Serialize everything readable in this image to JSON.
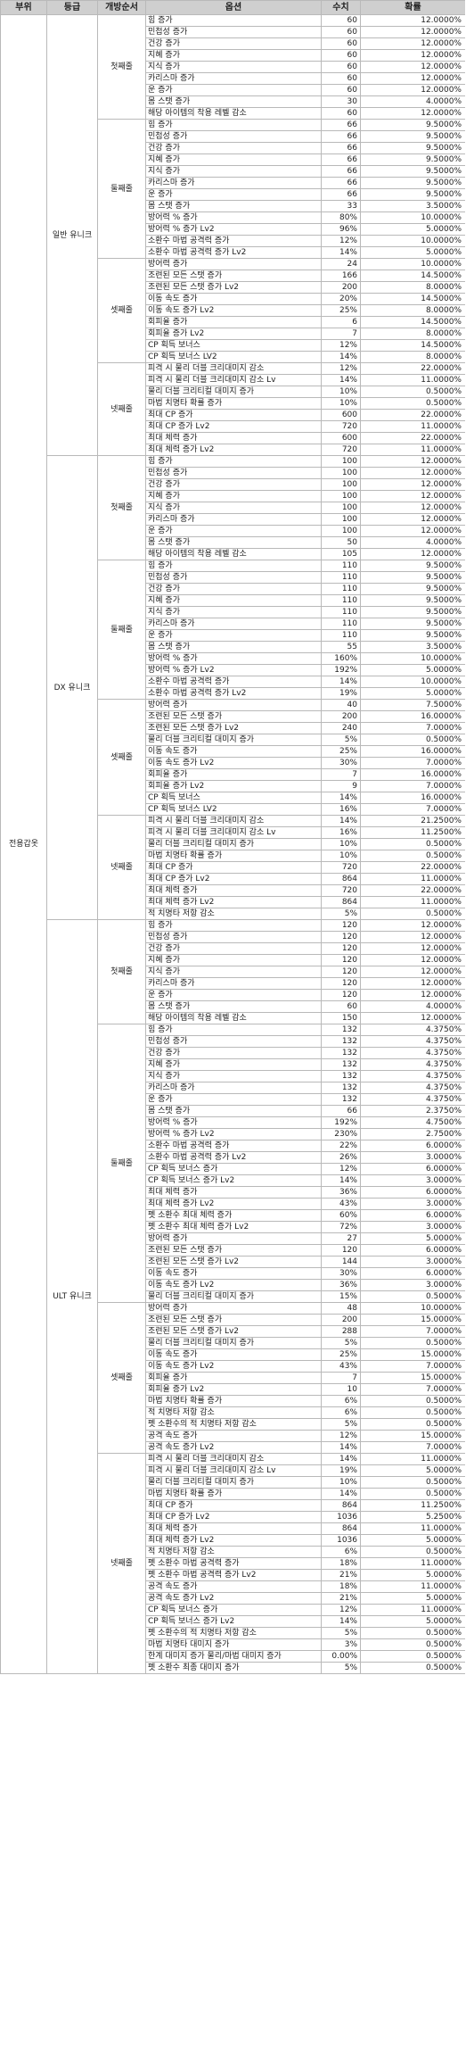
{
  "headers": {
    "part": "부위",
    "grade": "등급",
    "order": "개방순서",
    "option": "옵션",
    "value": "수치",
    "rate": "확률"
  },
  "part": "전용갑옷",
  "grades": [
    {
      "name": "일반 유니크",
      "orders": [
        {
          "name": "첫째줄",
          "rows": [
            [
              "힘 증가",
              "60",
              "12.0000%"
            ],
            [
              "민첩성 증가",
              "60",
              "12.0000%"
            ],
            [
              "건강 증가",
              "60",
              "12.0000%"
            ],
            [
              "지혜 증가",
              "60",
              "12.0000%"
            ],
            [
              "지식 증가",
              "60",
              "12.0000%"
            ],
            [
              "카리스마 증가",
              "60",
              "12.0000%"
            ],
            [
              "운 증가",
              "60",
              "12.0000%"
            ],
            [
              "몸 스탯 증가",
              "30",
              "4.0000%"
            ],
            [
              "해당 아이템의 착용 레벨 감소",
              "60",
              "12.0000%"
            ]
          ]
        },
        {
          "name": "둘째줄",
          "rows": [
            [
              "힘 증가",
              "66",
              "9.5000%"
            ],
            [
              "민첩성 증가",
              "66",
              "9.5000%"
            ],
            [
              "건강 증가",
              "66",
              "9.5000%"
            ],
            [
              "지혜 증가",
              "66",
              "9.5000%"
            ],
            [
              "지식 증가",
              "66",
              "9.5000%"
            ],
            [
              "카리스마 증가",
              "66",
              "9.5000%"
            ],
            [
              "운 증가",
              "66",
              "9.5000%"
            ],
            [
              "몸 스탯 증가",
              "33",
              "3.5000%"
            ],
            [
              "방어력 % 증가",
              "80%",
              "10.0000%"
            ],
            [
              "방어력 % 증가 Lv2",
              "96%",
              "5.0000%"
            ],
            [
              "소환수 마법 공격력 증가",
              "12%",
              "10.0000%"
            ],
            [
              "소환수 마법 공격력 증가 Lv2",
              "14%",
              "5.0000%"
            ]
          ]
        },
        {
          "name": "셋째줄",
          "rows": [
            [
              "방어력 증가",
              "24",
              "10.0000%"
            ],
            [
              "조련된 모든 스탯 증가",
              "166",
              "14.5000%"
            ],
            [
              "조련된 모든 스탯 증가 Lv2",
              "200",
              "8.0000%"
            ],
            [
              "이동 속도 증가",
              "20%",
              "14.5000%"
            ],
            [
              "이동 속도 증가 Lv2",
              "25%",
              "8.0000%"
            ],
            [
              "회피율 증가",
              "6",
              "14.5000%"
            ],
            [
              "회피율 증가 Lv2",
              "7",
              "8.0000%"
            ],
            [
              "CP 획득 보너스",
              "12%",
              "14.5000%"
            ],
            [
              "CP 획득 보너스 LV2",
              "14%",
              "8.0000%"
            ]
          ]
        },
        {
          "name": "넷째줄",
          "rows": [
            [
              "피격 시 물리 더블 크리대미지 감소",
              "12%",
              "22.0000%"
            ],
            [
              "피격 시 물리 더블 크리대미지 감소 Lv",
              "14%",
              "11.0000%"
            ],
            [
              "물리 더블 크리티컬 대미지 증가",
              "10%",
              "0.5000%"
            ],
            [
              "마법 치명타 확률 증가",
              "10%",
              "0.5000%"
            ],
            [
              "최대 CP 증가",
              "600",
              "22.0000%"
            ],
            [
              "최대 CP 증가 Lv2",
              "720",
              "11.0000%"
            ],
            [
              "최대 체력 증가",
              "600",
              "22.0000%"
            ],
            [
              "최대 체력 증가 Lv2",
              "720",
              "11.0000%"
            ]
          ]
        }
      ]
    },
    {
      "name": "DX 유니크",
      "orders": [
        {
          "name": "첫째줄",
          "rows": [
            [
              "힘 증가",
              "100",
              "12.0000%"
            ],
            [
              "민첩성 증가",
              "100",
              "12.0000%"
            ],
            [
              "건강 증가",
              "100",
              "12.0000%"
            ],
            [
              "지혜 증가",
              "100",
              "12.0000%"
            ],
            [
              "지식 증가",
              "100",
              "12.0000%"
            ],
            [
              "카리스마 증가",
              "100",
              "12.0000%"
            ],
            [
              "운 증가",
              "100",
              "12.0000%"
            ],
            [
              "몸 스탯 증가",
              "50",
              "4.0000%"
            ],
            [
              "해당 아이템의 착용 레벨 감소",
              "105",
              "12.0000%"
            ]
          ]
        },
        {
          "name": "둘째줄",
          "rows": [
            [
              "힘 증가",
              "110",
              "9.5000%"
            ],
            [
              "민첩성 증가",
              "110",
              "9.5000%"
            ],
            [
              "건강 증가",
              "110",
              "9.5000%"
            ],
            [
              "지혜 증가",
              "110",
              "9.5000%"
            ],
            [
              "지식 증가",
              "110",
              "9.5000%"
            ],
            [
              "카리스마 증가",
              "110",
              "9.5000%"
            ],
            [
              "운 증가",
              "110",
              "9.5000%"
            ],
            [
              "몸 스탯 증가",
              "55",
              "3.5000%"
            ],
            [
              "방어력 % 증가",
              "160%",
              "10.0000%"
            ],
            [
              "방어력 % 증가 Lv2",
              "192%",
              "5.0000%"
            ],
            [
              "소환수 마법 공격력 증가",
              "14%",
              "10.0000%"
            ],
            [
              "소환수 마법 공격력 증가 Lv2",
              "19%",
              "5.0000%"
            ]
          ]
        },
        {
          "name": "셋째줄",
          "rows": [
            [
              "방어력 증가",
              "40",
              "7.5000%"
            ],
            [
              "조련된 모든 스탯 증가",
              "200",
              "16.0000%"
            ],
            [
              "조련된 모든 스탯 증가 Lv2",
              "240",
              "7.0000%"
            ],
            [
              "물리 더블 크리티컬 대미지 증가",
              "5%",
              "0.5000%"
            ],
            [
              "이동 속도 증가",
              "25%",
              "16.0000%"
            ],
            [
              "이동 속도 증가 Lv2",
              "30%",
              "7.0000%"
            ],
            [
              "회피율 증가",
              "7",
              "16.0000%"
            ],
            [
              "회피율 증가 Lv2",
              "9",
              "7.0000%"
            ],
            [
              "CP 획득 보너스",
              "14%",
              "16.0000%"
            ],
            [
              "CP 획득 보너스 LV2",
              "16%",
              "7.0000%"
            ]
          ]
        },
        {
          "name": "넷째줄",
          "rows": [
            [
              "피격 시 물리 더블 크리대미지 감소",
              "14%",
              "21.2500%"
            ],
            [
              "피격 시 물리 더블 크리대미지 감소 Lv",
              "16%",
              "11.2500%"
            ],
            [
              "물리 더블 크리티컬 대미지 증가",
              "10%",
              "0.5000%"
            ],
            [
              "마법 치명타 확률 증가",
              "10%",
              "0.5000%"
            ],
            [
              "최대 CP 증가",
              "720",
              "22.0000%"
            ],
            [
              "최대 CP 증가 Lv2",
              "864",
              "11.0000%"
            ],
            [
              "최대 체력 증가",
              "720",
              "22.0000%"
            ],
            [
              "최대 체력 증가 Lv2",
              "864",
              "11.0000%"
            ],
            [
              "적 치명타 저항 감소",
              "5%",
              "0.5000%"
            ]
          ]
        }
      ]
    },
    {
      "name": "ULT 유니크",
      "orders": [
        {
          "name": "첫째줄",
          "rows": [
            [
              "힘 증가",
              "120",
              "12.0000%"
            ],
            [
              "민첩성 증가",
              "120",
              "12.0000%"
            ],
            [
              "건강 증가",
              "120",
              "12.0000%"
            ],
            [
              "지혜 증가",
              "120",
              "12.0000%"
            ],
            [
              "지식 증가",
              "120",
              "12.0000%"
            ],
            [
              "카리스마 증가",
              "120",
              "12.0000%"
            ],
            [
              "운 증가",
              "120",
              "12.0000%"
            ],
            [
              "몸 스탯 증가",
              "60",
              "4.0000%"
            ],
            [
              "해당 아이템의 착용 레벨 감소",
              "150",
              "12.0000%"
            ]
          ]
        },
        {
          "name": "둘째줄",
          "rows": [
            [
              "힘 증가",
              "132",
              "4.3750%"
            ],
            [
              "민첩성 증가",
              "132",
              "4.3750%"
            ],
            [
              "건강 증가",
              "132",
              "4.3750%"
            ],
            [
              "지혜 증가",
              "132",
              "4.3750%"
            ],
            [
              "지식 증가",
              "132",
              "4.3750%"
            ],
            [
              "카리스마 증가",
              "132",
              "4.3750%"
            ],
            [
              "운 증가",
              "132",
              "4.3750%"
            ],
            [
              "몸 스탯 증가",
              "66",
              "2.3750%"
            ],
            [
              "방어력 % 증가",
              "192%",
              "4.7500%"
            ],
            [
              "방어력 % 증가 Lv2",
              "230%",
              "2.7500%"
            ],
            [
              "소환수 마법 공격력 증가",
              "22%",
              "6.0000%"
            ],
            [
              "소환수 마법 공격력 증가 Lv2",
              "26%",
              "3.0000%"
            ],
            [
              "CP 획득 보너스 증가",
              "12%",
              "6.0000%"
            ],
            [
              "CP 획득 보너스 증가 Lv2",
              "14%",
              "3.0000%"
            ],
            [
              "최대 체력 증가",
              "36%",
              "6.0000%"
            ],
            [
              "최대 체력 증가 Lv2",
              "43%",
              "3.0000%"
            ],
            [
              "펫 소환수 최대 체력 증가",
              "60%",
              "6.0000%"
            ],
            [
              "펫 소환수 최대 체력 증가 Lv2",
              "72%",
              "3.0000%"
            ],
            [
              "방어력 증가",
              "27",
              "5.0000%"
            ],
            [
              "조련된 모든 스탯 증가",
              "120",
              "6.0000%"
            ],
            [
              "조련된 모든 스탯 증가 Lv2",
              "144",
              "3.0000%"
            ],
            [
              "이동 속도 증가",
              "30%",
              "6.0000%"
            ],
            [
              "이동 속도 증가 Lv2",
              "36%",
              "3.0000%"
            ],
            [
              "물리 더블 크리티컬 대미지 증가",
              "15%",
              "0.5000%"
            ]
          ]
        },
        {
          "name": "셋째줄",
          "rows": [
            [
              "방어력 증가",
              "48",
              "10.0000%"
            ],
            [
              "조련된 모든 스탯 증가",
              "200",
              "15.0000%"
            ],
            [
              "조련된 모든 스탯 증가 Lv2",
              "288",
              "7.0000%"
            ],
            [
              "물리 더블 크리티컬 대미지 증가",
              "5%",
              "0.5000%"
            ],
            [
              "이동 속도 증가",
              "25%",
              "15.0000%"
            ],
            [
              "이동 속도 증가 Lv2",
              "43%",
              "7.0000%"
            ],
            [
              "회피율 증가",
              "7",
              "15.0000%"
            ],
            [
              "회피율 증가 Lv2",
              "10",
              "7.0000%"
            ],
            [
              "마법 치명타 확률 증가",
              "6%",
              "0.5000%"
            ],
            [
              "적 치명타 저항 감소",
              "6%",
              "0.5000%"
            ],
            [
              "펫 소환수의 적 치명타 저항 감소",
              "5%",
              "0.5000%"
            ],
            [
              "공격 속도 증가",
              "12%",
              "15.0000%"
            ],
            [
              "공격 속도 증가 Lv2",
              "14%",
              "7.0000%"
            ]
          ]
        },
        {
          "name": "넷째줄",
          "rows": [
            [
              "피격 시 물리 더블 크리대미지 감소",
              "14%",
              "11.0000%"
            ],
            [
              "피격 시 물리 더블 크리대미지 감소 Lv",
              "19%",
              "5.0000%"
            ],
            [
              "물리 더블 크리티컬 대미지 증가",
              "10%",
              "0.5000%"
            ],
            [
              "마법 치명타 확률 증가",
              "14%",
              "0.5000%"
            ],
            [
              "최대 CP 증가",
              "864",
              "11.2500%"
            ],
            [
              "최대 CP 증가 Lv2",
              "1036",
              "5.2500%"
            ],
            [
              "최대 체력 증가",
              "864",
              "11.0000%"
            ],
            [
              "최대 체력 증가 Lv2",
              "1036",
              "5.0000%"
            ],
            [
              "적 치명타 저항 감소",
              "6%",
              "0.5000%"
            ],
            [
              "펫 소환수 마법 공격력 증가",
              "18%",
              "11.0000%"
            ],
            [
              "펫 소환수 마법 공격력 증가 Lv2",
              "21%",
              "5.0000%"
            ],
            [
              "공격 속도 증가",
              "18%",
              "11.0000%"
            ],
            [
              "공격 속도 증가 Lv2",
              "21%",
              "5.0000%"
            ],
            [
              "CP 획득 보너스 증가",
              "12%",
              "11.0000%"
            ],
            [
              "CP 획득 보너스 증가 Lv2",
              "14%",
              "5.0000%"
            ],
            [
              "펫 소환수의 적 치명타 저항 감소",
              "5%",
              "0.5000%"
            ],
            [
              "마법 치명타 대미지 증가",
              "3%",
              "0.5000%"
            ],
            [
              "한계 대미지 증가 물리/마법 대미지 증가",
              "0.00%",
              "0.5000%"
            ],
            [
              "펫 소환수 최종 대미지 증가",
              "5%",
              "0.5000%"
            ]
          ]
        }
      ]
    }
  ]
}
